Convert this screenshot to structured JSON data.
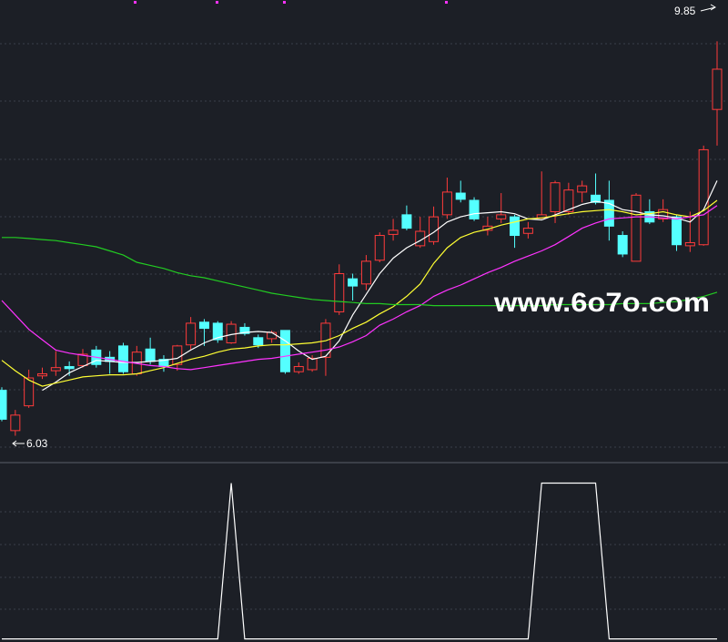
{
  "chart_data": [
    {
      "type": "candlestick",
      "categories": [
        null,
        null,
        null,
        null,
        null,
        null,
        null,
        null,
        null,
        null,
        null,
        null,
        null,
        null,
        null,
        null,
        null,
        null,
        null,
        null,
        null,
        null,
        null,
        null,
        null,
        null,
        null,
        null,
        null,
        null,
        null,
        null,
        null,
        null,
        null,
        null,
        null,
        null,
        null,
        null,
        null,
        null,
        null,
        null,
        null,
        null,
        null,
        null,
        null,
        null,
        null,
        null,
        null,
        null
      ],
      "open": [
        6.47,
        6.08,
        6.32,
        6.61,
        6.66,
        6.7,
        6.71,
        6.86,
        6.79,
        6.9,
        6.63,
        6.87,
        6.77,
        6.72,
        6.91,
        7.13,
        7.12,
        6.93,
        7.08,
        6.98,
        6.97,
        7.05,
        6.65,
        6.67,
        6.79,
        7.23,
        7.55,
        7.5,
        7.73,
        7.98,
        8.17,
        7.87,
        7.91,
        8.17,
        8.38,
        8.31,
        8.02,
        8.13,
        8.15,
        7.99,
        8.14,
        8.2,
        8.2,
        8.39,
        8.36,
        8.31,
        7.97,
        7.72,
        8.2,
        8.13,
        8.15,
        7.87,
        7.88,
        9.19
      ],
      "high": [
        6.5,
        6.28,
        6.67,
        6.69,
        6.85,
        6.75,
        6.87,
        6.9,
        6.85,
        6.93,
        6.9,
        6.98,
        6.81,
        6.91,
        7.18,
        7.16,
        7.14,
        7.14,
        7.12,
        7.01,
        7.05,
        7.05,
        6.74,
        6.81,
        7.16,
        7.69,
        7.6,
        7.78,
        8.0,
        8.13,
        8.26,
        8.15,
        8.25,
        8.53,
        8.5,
        8.34,
        8.15,
        8.38,
        8.17,
        8.1,
        8.59,
        8.5,
        8.48,
        8.5,
        8.57,
        8.5,
        8.01,
        8.38,
        8.32,
        8.32,
        8.17,
        8.2,
        8.84,
        9.85
      ],
      "low": [
        6.17,
        6.03,
        6.3,
        6.58,
        6.61,
        6.61,
        6.69,
        6.69,
        6.63,
        6.63,
        6.61,
        6.72,
        6.65,
        6.66,
        6.86,
        6.9,
        6.93,
        6.92,
        7.0,
        6.88,
        6.93,
        6.63,
        6.63,
        6.65,
        6.61,
        7.2,
        7.34,
        7.44,
        7.71,
        7.92,
        8.02,
        7.85,
        7.88,
        8.13,
        8.29,
        8.11,
        7.97,
        8.09,
        7.85,
        7.94,
        8.13,
        8.09,
        8.17,
        8.29,
        8.27,
        7.92,
        7.76,
        7.72,
        8.08,
        8.1,
        7.82,
        7.81,
        7.87,
        8.84
      ],
      "close": [
        6.19,
        6.23,
        6.59,
        6.63,
        6.69,
        6.68,
        6.82,
        6.72,
        6.75,
        6.65,
        6.84,
        6.75,
        6.7,
        6.9,
        7.12,
        7.07,
        6.96,
        7.11,
        7.02,
        6.91,
        7.03,
        6.65,
        6.7,
        6.78,
        7.12,
        7.6,
        7.48,
        7.72,
        7.97,
        8.02,
        8.04,
        8.01,
        8.15,
        8.39,
        8.32,
        8.13,
        8.06,
        8.17,
        7.97,
        8.04,
        8.17,
        8.48,
        8.41,
        8.45,
        8.29,
        8.06,
        7.79,
        8.36,
        8.1,
        8.22,
        7.88,
        7.9,
        8.8,
        9.58
      ],
      "up_color": "#ff3b3b",
      "down_color": "#54ffff",
      "lines": [
        {
          "color": "#ffffff",
          "values": [
            null,
            null,
            null,
            6.47,
            6.55,
            6.64,
            6.7,
            6.76,
            6.75,
            6.74,
            6.74,
            6.75,
            6.76,
            6.78,
            6.86,
            6.93,
            6.98,
            7.01,
            7.03,
            7.04,
            7.03,
            6.95,
            6.85,
            6.77,
            6.8,
            6.95,
            7.2,
            7.4,
            7.6,
            7.75,
            7.85,
            7.92,
            8.0,
            8.1,
            8.15,
            8.18,
            8.19,
            8.2,
            8.18,
            8.13,
            8.12,
            8.17,
            8.22,
            8.27,
            8.3,
            8.28,
            8.22,
            8.2,
            8.17,
            8.16,
            8.14,
            8.1,
            8.22,
            8.5
          ]
        },
        {
          "color": "#ffff33",
          "values": [
            6.76,
            6.66,
            6.57,
            6.51,
            6.54,
            6.57,
            6.6,
            6.61,
            6.62,
            6.62,
            6.63,
            6.66,
            6.69,
            6.73,
            6.77,
            6.8,
            6.84,
            6.87,
            6.88,
            6.9,
            6.91,
            6.91,
            6.92,
            6.93,
            6.95,
            7.0,
            7.07,
            7.13,
            7.21,
            7.28,
            7.38,
            7.5,
            7.7,
            7.85,
            7.95,
            8.0,
            8.03,
            8.07,
            8.1,
            8.13,
            8.14,
            8.16,
            8.18,
            8.2,
            8.21,
            8.22,
            8.2,
            8.17,
            8.18,
            8.2,
            8.17,
            8.15,
            8.21,
            8.31
          ]
        },
        {
          "color": "#ff33ff",
          "values": [
            7.34,
            7.2,
            7.06,
            6.96,
            6.86,
            6.83,
            6.81,
            6.79,
            6.77,
            6.75,
            6.73,
            6.71,
            6.7,
            6.68,
            6.67,
            6.69,
            6.71,
            6.73,
            6.75,
            6.77,
            6.78,
            6.8,
            6.82,
            6.84,
            6.86,
            6.89,
            6.94,
            7.0,
            7.1,
            7.16,
            7.23,
            7.29,
            7.38,
            7.44,
            7.49,
            7.55,
            7.61,
            7.66,
            7.72,
            7.77,
            7.82,
            7.88,
            7.96,
            8.04,
            8.09,
            8.13,
            8.14,
            8.15,
            8.15,
            8.14,
            8.13,
            8.15,
            8.17,
            8.26
          ]
        },
        {
          "color": "#22cc22",
          "values": [
            7.95,
            7.95,
            7.94,
            7.93,
            7.92,
            7.9,
            7.88,
            7.86,
            7.82,
            7.78,
            7.71,
            7.68,
            7.65,
            7.61,
            7.58,
            7.56,
            7.53,
            7.5,
            7.47,
            7.44,
            7.41,
            7.39,
            7.37,
            7.35,
            7.34,
            7.33,
            7.32,
            7.31,
            7.31,
            7.3,
            7.3,
            7.3,
            7.29,
            7.29,
            7.29,
            7.29,
            7.29,
            7.29,
            7.29,
            7.29,
            7.29,
            7.3,
            7.3,
            7.3,
            7.3,
            7.3,
            7.31,
            7.31,
            7.31,
            7.32,
            7.33,
            7.35,
            7.38,
            7.42
          ]
        }
      ],
      "ylim": [
        5.77,
        10.25
      ],
      "annotations": [
        "9.85",
        "6.03"
      ],
      "watermark": "www.6o7o.com"
    },
    {
      "type": "line",
      "categories": [
        null,
        null,
        null,
        null,
        null,
        null,
        null,
        null,
        null,
        null,
        null,
        null,
        null,
        null,
        null,
        null,
        null,
        null,
        null,
        null,
        null,
        null,
        null,
        null,
        null,
        null,
        null,
        null,
        null,
        null,
        null,
        null,
        null,
        null,
        null,
        null,
        null,
        null,
        null,
        null,
        null,
        null,
        null,
        null,
        null,
        null,
        null,
        null,
        null,
        null,
        null,
        null,
        null,
        null
      ],
      "series": [
        {
          "color": "#ffffff",
          "values": [
            0,
            0,
            0,
            0,
            0,
            0,
            0,
            0,
            0,
            0,
            0,
            0,
            0,
            0,
            0,
            0,
            0,
            1,
            0,
            0,
            0,
            0,
            0,
            0,
            0,
            0,
            0,
            0,
            0,
            0,
            0,
            0,
            0,
            0,
            0,
            0,
            0,
            0,
            0,
            0,
            1,
            1,
            1,
            1,
            1,
            0,
            0,
            0,
            0,
            0,
            0,
            0,
            0,
            0
          ]
        }
      ],
      "ylim": [
        -0.02,
        1.12
      ]
    }
  ]
}
